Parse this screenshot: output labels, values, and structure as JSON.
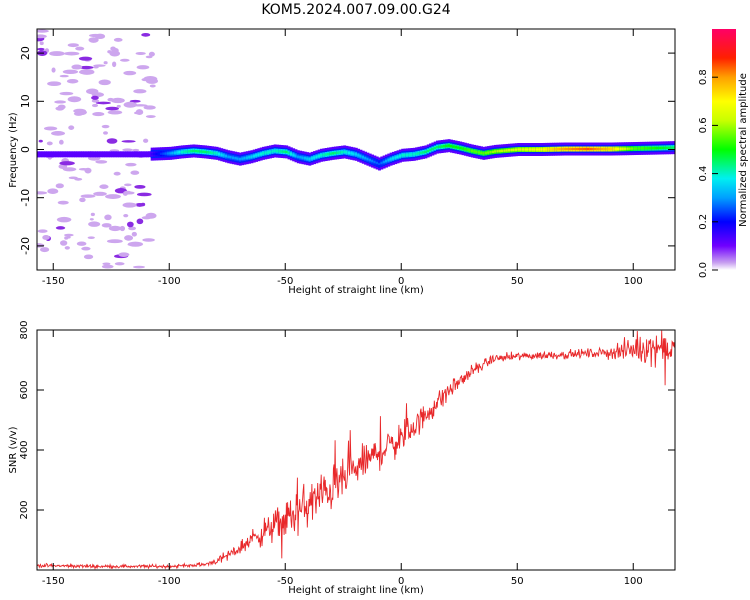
{
  "title": "KOM5.2024.007.09.00.G24",
  "colors": {
    "snr_line": "#e8282a",
    "blob_light": "#cda6ee",
    "blob_dark": "#8a2be2",
    "track_core": "#00e0c0",
    "colormap": [
      "#ffffff",
      "#b98ce8",
      "#6a00ff",
      "#0000ff",
      "#00a8ff",
      "#00f0e0",
      "#00ff00",
      "#c8ff00",
      "#ffff00",
      "#ffb000",
      "#ff3000",
      "#ff0066"
    ]
  },
  "chart_data": [
    {
      "type": "heatmap",
      "xlabel": "Height of straight line (km)",
      "ylabel": "Frequency (Hz)",
      "xlim": [
        -157,
        118
      ],
      "ylim": [
        -25,
        25
      ],
      "xticks": [
        -150,
        -100,
        -50,
        0,
        50,
        100
      ],
      "yticks": [
        -20,
        -10,
        0,
        10,
        20
      ],
      "colorbar": {
        "label": "Normalized spectral amplitude",
        "range": [
          0,
          1
        ],
        "ticks": [
          "0.0",
          "0.2",
          "0.4",
          "0.6",
          "0.8"
        ]
      },
      "track": {
        "x": [
          -157,
          -130,
          -110,
          -100,
          -95,
          -90,
          -85,
          -80,
          -75,
          -70,
          -65,
          -60,
          -55,
          -50,
          -45,
          -40,
          -35,
          -30,
          -25,
          -20,
          -15,
          -10,
          -5,
          0,
          5,
          10,
          15,
          20,
          25,
          30,
          35,
          40,
          50,
          60,
          70,
          80,
          90,
          100,
          110,
          118
        ],
        "freq_hz": [
          -1,
          -1,
          -1,
          -0.8,
          -0.5,
          -0.3,
          -0.5,
          -0.8,
          -1.5,
          -2,
          -1.5,
          -0.8,
          -0.3,
          -0.5,
          -1.5,
          -2,
          -1.2,
          -0.8,
          -0.5,
          -1,
          -2,
          -3,
          -2,
          -1.2,
          -1,
          -0.5,
          0.5,
          0.8,
          0.3,
          -0.3,
          -0.8,
          -0.4,
          0,
          0,
          0.1,
          0.1,
          0.1,
          0.2,
          0.3,
          0.4
        ],
        "amplitude": [
          0.05,
          0.1,
          0.12,
          0.3,
          0.4,
          0.45,
          0.45,
          0.4,
          0.3,
          0.3,
          0.35,
          0.4,
          0.4,
          0.45,
          0.3,
          0.35,
          0.4,
          0.45,
          0.4,
          0.35,
          0.3,
          0.25,
          0.35,
          0.4,
          0.4,
          0.45,
          0.45,
          0.5,
          0.5,
          0.55,
          0.55,
          0.6,
          0.65,
          0.7,
          0.8,
          0.85,
          0.75,
          0.55,
          0.5,
          0.45
        ]
      }
    },
    {
      "type": "line",
      "xlabel": "Height of straight line (km)",
      "ylabel": "SNR (v/v)",
      "xlim": [
        -157,
        118
      ],
      "ylim": [
        0,
        800
      ],
      "xticks": [
        -150,
        -100,
        -50,
        0,
        50,
        100
      ],
      "yticks": [
        200,
        400,
        600,
        800
      ],
      "series": [
        {
          "x": [
            -157,
            -130,
            -100,
            -85,
            -78,
            -72,
            -65,
            -55,
            -45,
            -35,
            -25,
            -15,
            -5,
            0,
            10,
            20,
            30,
            40,
            50,
            60,
            70,
            80,
            90,
            100,
            110,
            118
          ],
          "y": [
            15,
            12,
            12,
            18,
            35,
            60,
            100,
            145,
            190,
            245,
            300,
            365,
            415,
            440,
            510,
            595,
            660,
            705,
            712,
            715,
            718,
            722,
            725,
            735,
            745,
            735
          ],
          "noise": [
            4,
            4,
            4,
            5,
            10,
            15,
            25,
            35,
            55,
            55,
            45,
            40,
            40,
            38,
            30,
            25,
            15,
            10,
            10,
            10,
            10,
            10,
            15,
            30,
            40,
            30
          ]
        }
      ]
    }
  ]
}
